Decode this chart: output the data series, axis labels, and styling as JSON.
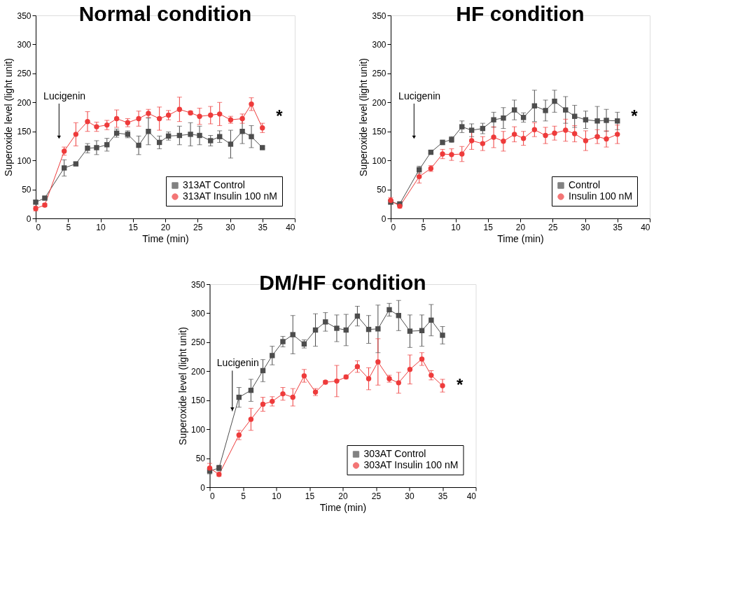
{
  "chart_data": [
    {
      "type": "line",
      "title": "Normal condition",
      "xlabel": "Time (min)",
      "ylabel": "Superoxide level (light unit)",
      "xlim": [
        0,
        40
      ],
      "ylim": [
        0,
        350
      ],
      "xticks": [
        0,
        5,
        10,
        15,
        20,
        25,
        30,
        35,
        40
      ],
      "yticks": [
        0,
        50,
        100,
        150,
        200,
        250,
        300,
        350
      ],
      "grid": false,
      "legend": "bottom right",
      "line_style": "solid",
      "x": [
        0,
        1.4,
        4.4,
        6.2,
        8,
        9.4,
        11,
        12.5,
        14.2,
        15.9,
        17.4,
        19.1,
        20.5,
        22.2,
        23.9,
        25.3,
        27,
        28.4,
        30.1,
        31.9,
        33.3,
        35
      ],
      "series": [
        {
          "name": "313AT Control",
          "color": "#4d4d4d",
          "marker": "square",
          "values": [
            28,
            35,
            87,
            94,
            121,
            122,
            127,
            147,
            145,
            126,
            150,
            131,
            142,
            143,
            145,
            143,
            134,
            141,
            128,
            150,
            141,
            122
          ],
          "errors": [
            3,
            2,
            14,
            3,
            8,
            12,
            11,
            7,
            6,
            16,
            23,
            11,
            7,
            16,
            20,
            16,
            9,
            10,
            24,
            21,
            19,
            2
          ]
        },
        {
          "name": "313AT Insulin 100 nM",
          "color": "#ee3b3b",
          "marker": "circle",
          "values": [
            17,
            23,
            116,
            145,
            167,
            158,
            161,
            172,
            165,
            172,
            181,
            172,
            178,
            188,
            182,
            176,
            178,
            180,
            170,
            172,
            197,
            156
          ],
          "errors": [
            4,
            3,
            7,
            20,
            17,
            8,
            8,
            15,
            7,
            13,
            7,
            20,
            8,
            21,
            3,
            14,
            15,
            20,
            6,
            8,
            11,
            8
          ]
        }
      ],
      "annotations": [
        "Lucigenin",
        "*"
      ]
    },
    {
      "type": "line",
      "title": "HF condition",
      "xlabel": "Time (min)",
      "ylabel": "Superoxide level (light unit)",
      "xlim": [
        0,
        40
      ],
      "ylim": [
        0,
        350
      ],
      "xticks": [
        0,
        5,
        10,
        15,
        20,
        25,
        30,
        35,
        40
      ],
      "yticks": [
        0,
        50,
        100,
        150,
        200,
        250,
        300,
        350
      ],
      "grid": false,
      "legend": "bottom right",
      "line_style": "solid",
      "x": [
        0,
        1.4,
        4.4,
        6.2,
        8,
        9.4,
        11,
        12.5,
        14.2,
        15.9,
        17.4,
        19.1,
        20.5,
        22.2,
        23.9,
        25.3,
        27,
        28.4,
        30.1,
        31.9,
        33.3,
        35
      ],
      "series": [
        {
          "name": "Control",
          "color": "#4d4d4d",
          "marker": "square",
          "values": [
            28,
            25,
            84,
            114,
            131,
            136,
            158,
            152,
            155,
            170,
            173,
            187,
            174,
            194,
            186,
            202,
            187,
            176,
            170,
            168,
            169,
            168
          ],
          "errors": [
            3,
            3,
            6,
            3,
            4,
            5,
            10,
            11,
            9,
            13,
            18,
            17,
            8,
            27,
            18,
            19,
            23,
            19,
            15,
            25,
            19,
            15
          ]
        },
        {
          "name": "Insulin 100 nM",
          "color": "#ee3b3b",
          "marker": "circle",
          "values": [
            31,
            21,
            72,
            86,
            111,
            110,
            111,
            134,
            129,
            140,
            133,
            145,
            138,
            153,
            143,
            147,
            152,
            146,
            134,
            141,
            137,
            145
          ],
          "errors": [
            5,
            3,
            11,
            5,
            8,
            10,
            13,
            15,
            12,
            18,
            17,
            13,
            12,
            12,
            14,
            12,
            19,
            14,
            17,
            12,
            14,
            16
          ]
        }
      ],
      "annotations": [
        "Lucigenin",
        "*"
      ]
    },
    {
      "type": "line",
      "title": "DM/HF condition",
      "xlabel": "Time (min)",
      "ylabel": "Superoxide level (light unit)",
      "xlim": [
        0,
        40
      ],
      "ylim": [
        0,
        350
      ],
      "xticks": [
        0,
        5,
        10,
        15,
        20,
        25,
        30,
        35,
        40
      ],
      "yticks": [
        0,
        50,
        100,
        150,
        200,
        250,
        300,
        350
      ],
      "grid": false,
      "legend": "bottom right",
      "line_style": "solid",
      "x": [
        0,
        1.4,
        4.4,
        6.2,
        8,
        9.4,
        11,
        12.5,
        14.2,
        15.9,
        17.4,
        19.1,
        20.5,
        22.2,
        23.9,
        25.3,
        27,
        28.4,
        30.1,
        31.9,
        33.3,
        35
      ],
      "series": [
        {
          "name": "303AT Control",
          "color": "#4d4d4d",
          "marker": "square",
          "values": [
            28,
            33,
            155,
            167,
            201,
            227,
            251,
            263,
            247,
            271,
            285,
            274,
            271,
            295,
            272,
            273,
            306,
            296,
            269,
            270,
            288,
            262
          ],
          "errors": [
            5,
            5,
            17,
            19,
            19,
            16,
            9,
            33,
            7,
            28,
            16,
            23,
            27,
            17,
            24,
            41,
            11,
            26,
            28,
            27,
            27,
            15
          ]
        },
        {
          "name": "303AT Insulin 100 nM",
          "color": "#ee3b3b",
          "marker": "circle",
          "values": [
            33,
            22,
            90,
            117,
            143,
            148,
            161,
            155,
            192,
            164,
            181,
            183,
            190,
            208,
            187,
            216,
            187,
            180,
            203,
            221,
            193,
            175
          ],
          "errors": [
            8,
            3,
            8,
            19,
            12,
            8,
            11,
            15,
            11,
            6,
            3,
            27,
            3,
            10,
            19,
            40,
            6,
            18,
            25,
            11,
            8,
            11
          ]
        }
      ],
      "annotations": [
        {
          "text": "Lucigenin",
          "x": 3.4,
          "y": 131
        },
        "*"
      ]
    }
  ]
}
